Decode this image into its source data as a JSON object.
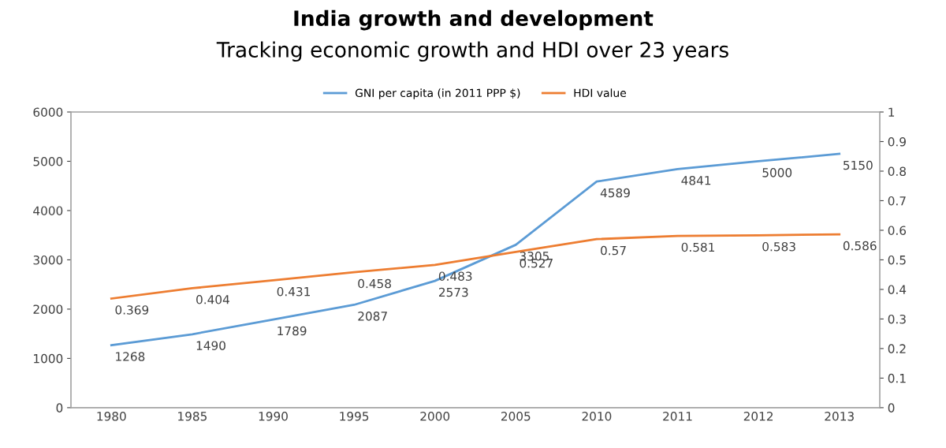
{
  "chart_data": {
    "type": "line",
    "title": "India growth and development",
    "subtitle": "Tracking economic growth and HDI over 23 years",
    "categories": [
      "1980",
      "1985",
      "1990",
      "1995",
      "2000",
      "2005",
      "2010",
      "2011",
      "2012",
      "2013"
    ],
    "series": [
      {
        "name": "GNI per capita (in 2011 PPP $)",
        "color": "#5b9bd5",
        "values": [
          1268,
          1490,
          1789,
          2087,
          2573,
          3305,
          4589,
          4841,
          5000,
          5150
        ]
      },
      {
        "name": "HDI value",
        "color": "#ed7d31",
        "axis": "y2",
        "values": [
          0.369,
          0.404,
          0.431,
          0.458,
          0.483,
          0.527,
          0.57,
          0.581,
          0.583,
          0.586
        ]
      }
    ],
    "ylim": [
      0,
      6000
    ],
    "yticks": [
      0,
      1000,
      2000,
      3000,
      4000,
      5000,
      6000
    ],
    "y2lim": [
      0,
      1
    ],
    "y2ticks": [
      0,
      0.1,
      0.2,
      0.3,
      0.4,
      0.5,
      0.6,
      0.7,
      0.8,
      0.9,
      1
    ],
    "data_labels": true,
    "legend": "top",
    "grid": false,
    "marker": "none",
    "line_style": "solid"
  }
}
